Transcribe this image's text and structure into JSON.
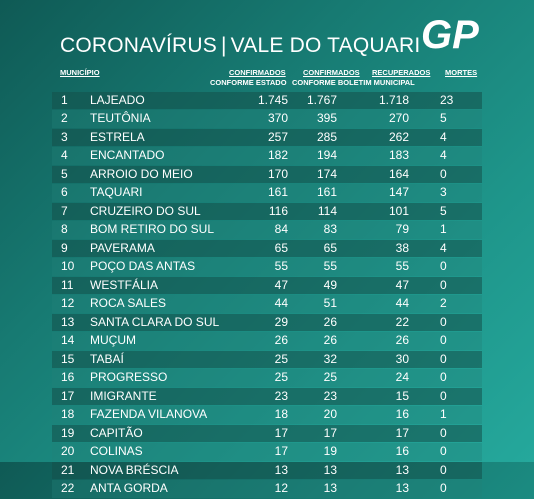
{
  "title": {
    "part1": "CORONAVÍRUS",
    "separator": "|",
    "part2": "VALE DO TAQUARI"
  },
  "logo": {
    "text": "GP"
  },
  "headers": {
    "municipio": "MUNICÍPIO",
    "confirmados_estado_1": "CONFIRMADOS",
    "confirmados_estado_2": "CONFORME ESTADO",
    "confirmados_municipal_1": "CONFIRMADOS",
    "confirmados_municipal_2": "CONFORME BOLETIM MUNICIPAL",
    "recuperados": "RECUPERADOS",
    "mortes": "MORTES"
  },
  "rows": [
    {
      "n": "1",
      "m": "LAJEADO",
      "a": "1.745",
      "b": "1.767",
      "r": "1.718",
      "d": "23"
    },
    {
      "n": "2",
      "m": "TEUTÔNIA",
      "a": "370",
      "b": "395",
      "r": "270",
      "d": "5"
    },
    {
      "n": "3",
      "m": "ESTRELA",
      "a": "257",
      "b": "285",
      "r": "262",
      "d": "4"
    },
    {
      "n": "4",
      "m": "ENCANTADO",
      "a": "182",
      "b": "194",
      "r": "183",
      "d": "4"
    },
    {
      "n": "5",
      "m": "ARROIO DO MEIO",
      "a": "170",
      "b": "174",
      "r": "164",
      "d": "0"
    },
    {
      "n": "6",
      "m": "TAQUARI",
      "a": "161",
      "b": "161",
      "r": "147",
      "d": "3"
    },
    {
      "n": "7",
      "m": "CRUZEIRO DO SUL",
      "a": "116",
      "b": "114",
      "r": "101",
      "d": "5"
    },
    {
      "n": "8",
      "m": "BOM RETIRO DO SUL",
      "a": "84",
      "b": "83",
      "r": "79",
      "d": "1"
    },
    {
      "n": "9",
      "m": "PAVERAMA",
      "a": "65",
      "b": "65",
      "r": "38",
      "d": "4"
    },
    {
      "n": "10",
      "m": "POÇO DAS ANTAS",
      "a": "55",
      "b": "55",
      "r": "55",
      "d": "0"
    },
    {
      "n": "11",
      "m": "WESTFÁLIA",
      "a": "47",
      "b": "49",
      "r": "47",
      "d": "0"
    },
    {
      "n": "12",
      "m": "ROCA SALES",
      "a": "44",
      "b": "51",
      "r": "44",
      "d": "2"
    },
    {
      "n": "13",
      "m": "SANTA CLARA DO SUL",
      "a": "29",
      "b": "26",
      "r": "22",
      "d": "0"
    },
    {
      "n": "14",
      "m": "MUÇUM",
      "a": "26",
      "b": "26",
      "r": "26",
      "d": "0"
    },
    {
      "n": "15",
      "m": "TABAÍ",
      "a": "25",
      "b": "32",
      "r": "30",
      "d": "0"
    },
    {
      "n": "16",
      "m": "PROGRESSO",
      "a": "25",
      "b": "25",
      "r": "24",
      "d": "0"
    },
    {
      "n": "17",
      "m": "IMIGRANTE",
      "a": "23",
      "b": "23",
      "r": "15",
      "d": "0"
    },
    {
      "n": "18",
      "m": "FAZENDA VILANOVA",
      "a": "18",
      "b": "20",
      "r": "16",
      "d": "1"
    },
    {
      "n": "19",
      "m": "CAPITÃO",
      "a": "17",
      "b": "17",
      "r": "17",
      "d": "0"
    },
    {
      "n": "20",
      "m": "COLINAS",
      "a": "17",
      "b": "19",
      "r": "16",
      "d": "0"
    },
    {
      "n": "21",
      "m": "NOVA BRÉSCIA",
      "a": "13",
      "b": "13",
      "r": "13",
      "d": "0"
    },
    {
      "n": "22",
      "m": "ANTA GORDA",
      "a": "12",
      "b": "13",
      "r": "13",
      "d": "0"
    }
  ]
}
